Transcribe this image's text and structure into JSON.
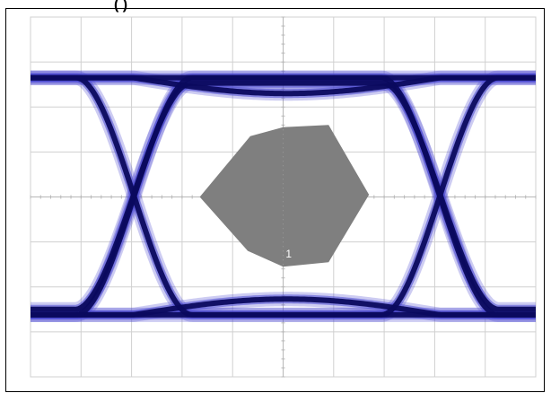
{
  "title_fragment": "(                    )",
  "chart_data": {
    "type": "eye-diagram",
    "grid": true,
    "divisions": {
      "x": 10,
      "y": 8
    },
    "xlim": [
      0,
      10
    ],
    "ylim": [
      -4,
      4
    ],
    "levels": {
      "high": 2.65,
      "low": -2.62
    },
    "eye_overshoot": 0.35,
    "crossings_x": [
      2.05,
      8.1
    ],
    "mask": {
      "label": "1",
      "vertices": [
        [
          4.35,
          1.35
        ],
        [
          5.0,
          1.55
        ],
        [
          5.9,
          1.6
        ],
        [
          6.7,
          0.05
        ],
        [
          5.9,
          -1.45
        ],
        [
          5.0,
          -1.55
        ],
        [
          4.3,
          -1.2
        ],
        [
          3.35,
          0.0
        ]
      ]
    },
    "colors": {
      "trace_core": "#0b0a5e",
      "trace_halo": "#4a49d2",
      "mask": "#7f7f7f",
      "grid": "#d0d0d0",
      "axis": "#b8b8b8"
    }
  }
}
